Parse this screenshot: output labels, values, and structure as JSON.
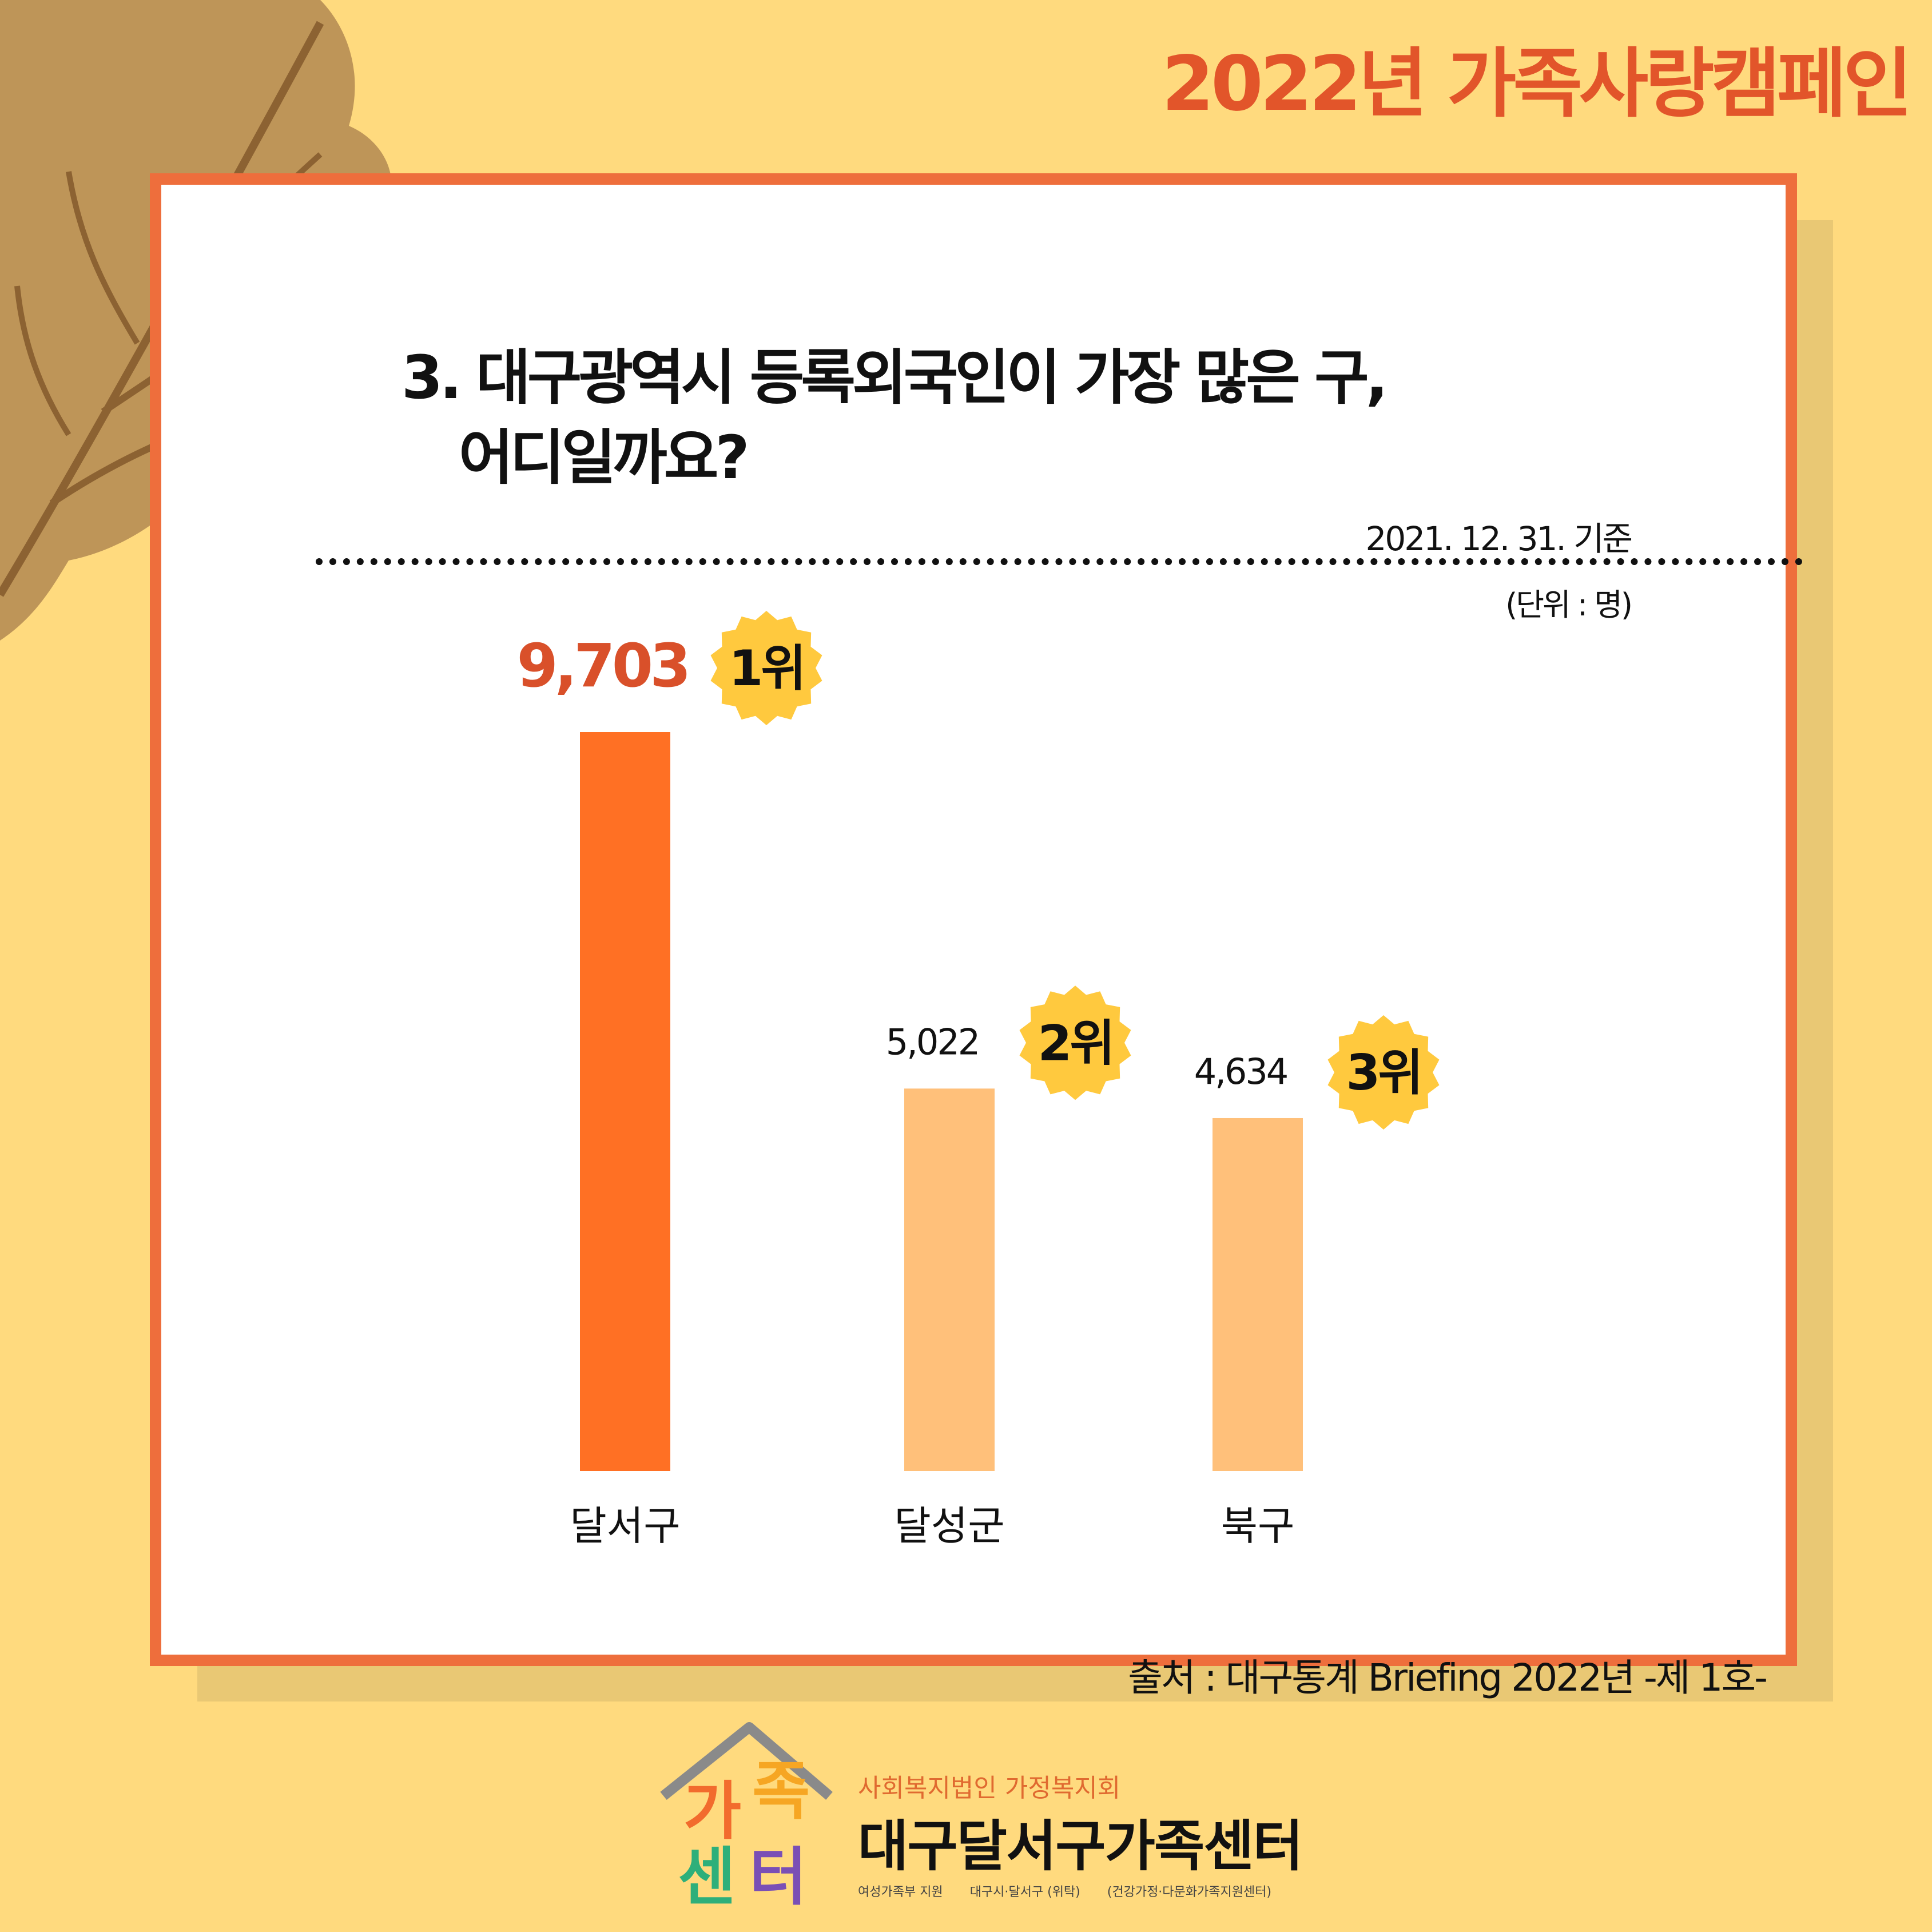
{
  "campaign_title": "2022년 가족사랑캠페인",
  "question": {
    "line1": "3. 대구광역시 등록외국인이 가장 많은 구,",
    "line2": "어디일까요?"
  },
  "reference_date": "2021. 12. 31. 기준",
  "unit_label": "(단위 : 명)",
  "source": "출처 : 대구통계 Briefing 2022년 -제 1호-",
  "colors": {
    "background": "#FFDA7E",
    "card_border": "#EE6E3C",
    "first_bar": "#FF7024",
    "other_bars": "#FFC07A",
    "badge": "#FFC93E",
    "first_value_text": "#D9502A"
  },
  "chart_data": {
    "type": "bar",
    "categories": [
      "달서구",
      "달성군",
      "북구"
    ],
    "values": [
      9703,
      5022,
      4634
    ],
    "value_labels": [
      "9,703",
      "5,022",
      "4,634"
    ],
    "rank_labels": [
      "1위",
      "2위",
      "3위"
    ],
    "title": "",
    "xlabel": "",
    "ylabel": "",
    "ylim": [
      0,
      9703
    ],
    "grid": false,
    "legend": "none"
  },
  "logo": {
    "emblem_text": [
      "가",
      "족",
      "센",
      "터"
    ],
    "org_small": "사회복지법인 가정복지회",
    "org_big": "대구달서구가족센터",
    "notes": [
      "여성가족부 지원",
      "대구시·달서구 (위탁)",
      "(건강가정·다문화가족지원센터)"
    ]
  }
}
